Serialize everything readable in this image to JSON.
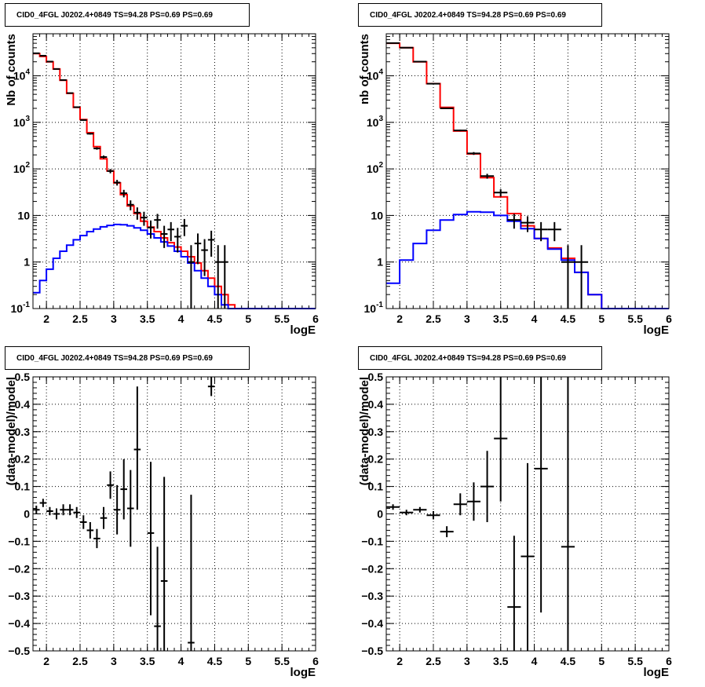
{
  "chart_data": [
    {
      "type": "step-histogram",
      "title": "CID0_4FGL J0202.4+0849 TS=94.28 PS=0.69 PS=0.69",
      "xlabel": "logE",
      "ylabel": "Nb of counts",
      "xlim": [
        1.8,
        6.0
      ],
      "ylim": [
        0.1,
        80000
      ],
      "yscale": "log",
      "grid": true,
      "xticks": [
        "2",
        "2.5",
        "3",
        "3.5",
        "4",
        "4.5",
        "5",
        "5.5",
        "6"
      ],
      "xtick_values": [
        2,
        2.5,
        3,
        3.5,
        4,
        4.5,
        5,
        5.5,
        6
      ],
      "yticks": [
        "10^-1",
        "1",
        "10",
        "10^2",
        "10^3",
        "10^4"
      ],
      "ytick_values": [
        0.1,
        1,
        10,
        100,
        1000,
        10000
      ],
      "bin_edges": [
        1.8,
        1.9,
        2.0,
        2.1,
        2.2,
        2.3,
        2.4,
        2.5,
        2.6,
        2.7,
        2.8,
        2.9,
        3.0,
        3.1,
        3.2,
        3.3,
        3.4,
        3.5,
        3.6,
        3.7,
        3.8,
        3.9,
        4.0,
        4.1,
        4.2,
        4.3,
        4.4,
        4.5,
        4.6,
        4.7,
        4.8,
        4.9,
        5.0,
        5.1,
        5.2,
        5.3,
        5.4,
        5.5,
        5.6,
        5.7,
        5.8,
        5.9,
        6.0
      ],
      "series": [
        {
          "name": "",
          "kind": "step",
          "color": "#ff0000",
          "values": [
            30000,
            26000,
            20000,
            14000,
            8000,
            4200,
            2100,
            1150,
            600,
            300,
            165,
            90,
            50,
            28,
            16,
            11,
            7.5,
            5.6,
            4.5,
            3.3,
            2.6,
            2.1,
            1.7,
            1.3,
            0.95,
            0.65,
            0.45,
            0.3,
            0.2,
            0.12,
            0.1,
            0.1,
            0.1,
            0.1,
            0.1,
            0.1,
            0.1,
            0.1,
            0.1,
            0.1,
            0.1,
            0.1
          ]
        },
        {
          "name": "",
          "kind": "step",
          "color": "#0000ff",
          "values": [
            0.22,
            0.4,
            0.7,
            1.2,
            1.7,
            2.3,
            3.0,
            3.7,
            4.5,
            5.1,
            5.7,
            6.1,
            6.4,
            6.3,
            6.0,
            5.4,
            4.8,
            4.0,
            3.3,
            2.7,
            2.2,
            1.7,
            1.3,
            0.95,
            0.65,
            0.45,
            0.3,
            0.2,
            0.12,
            0.1,
            0.1,
            0.1,
            0.1,
            0.1,
            0.1,
            0.1,
            0.1,
            0.1,
            0.1,
            0.1,
            0.1,
            0.1
          ]
        },
        {
          "name": "",
          "kind": "errorbar",
          "color": "#000000",
          "x": [
            1.85,
            1.95,
            2.05,
            2.15,
            2.25,
            2.35,
            2.45,
            2.55,
            2.65,
            2.75,
            2.85,
            2.95,
            3.05,
            3.15,
            3.25,
            3.35,
            3.45,
            3.55,
            3.65,
            3.75,
            3.85,
            3.95,
            4.05,
            4.15,
            4.25,
            4.35,
            4.45,
            4.55,
            4.65
          ],
          "y": [
            30500,
            27000,
            20200,
            14000,
            8100,
            4250,
            2120,
            1120,
            570,
            275,
            180,
            90,
            51,
            30,
            17,
            11.5,
            9,
            5.5,
            8,
            4,
            5,
            3.5,
            6,
            1,
            2.5,
            1.8,
            3,
            1,
            1
          ],
          "yerr_low": [
            175,
            165,
            142,
            118,
            90,
            65,
            46,
            33,
            24,
            16.5,
            13.4,
            9.5,
            7.1,
            5.5,
            4.1,
            3.4,
            3,
            2.3,
            2.8,
            2,
            2.2,
            1.9,
            2.4,
            0.9,
            1.6,
            1.3,
            1.7,
            0.9,
            0.9
          ],
          "yerr_high": [
            175,
            165,
            142,
            118,
            90,
            65,
            46,
            33,
            24,
            16.5,
            13.4,
            9.5,
            7.1,
            5.5,
            4.1,
            3.4,
            3,
            2.3,
            2.8,
            2,
            2.2,
            1.9,
            2.4,
            1.3,
            1.6,
            1.3,
            1.7,
            1.3,
            1.3
          ],
          "note": ""
        }
      ]
    },
    {
      "type": "step-histogram",
      "title": "CID0_4FGL J0202.4+0849 TS=94.28 PS=0.69 PS=0.69",
      "xlabel": "logE",
      "ylabel": "nb of counts",
      "xlim": [
        1.8,
        6.0
      ],
      "ylim": [
        0.1,
        80000
      ],
      "yscale": "log",
      "grid": true,
      "xticks": [
        "2",
        "2.5",
        "3",
        "3.5",
        "4",
        "4.5",
        "5",
        "5.5",
        "6"
      ],
      "xtick_values": [
        2,
        2.5,
        3,
        3.5,
        4,
        4.5,
        5,
        5.5,
        6
      ],
      "yticks": [
        "10^-1",
        "1",
        "10",
        "10^2",
        "10^3",
        "10^4"
      ],
      "ytick_values": [
        0.1,
        1,
        10,
        100,
        1000,
        10000
      ],
      "bin_edges": [
        1.8,
        2.0,
        2.2,
        2.4,
        2.6,
        2.8,
        3.0,
        3.2,
        3.4,
        3.6,
        3.8,
        4.0,
        4.2,
        4.4,
        4.6,
        4.8,
        5.0,
        5.2,
        5.4,
        5.6,
        5.8,
        6.0
      ],
      "series": [
        {
          "name": "",
          "kind": "step",
          "color": "#ff0000",
          "values": [
            50000,
            40000,
            20000,
            6800,
            2100,
            650,
            210,
            65,
            25,
            11,
            6,
            3.2,
            2,
            1.2,
            0.6,
            0.2,
            0.1,
            0.1,
            0.1,
            0.1,
            0.1
          ]
        },
        {
          "name": "",
          "kind": "step",
          "color": "#0000ff",
          "values": [
            0.35,
            1.1,
            2.5,
            4.8,
            8,
            10.5,
            12,
            11.8,
            10,
            7.5,
            5.2,
            3.2,
            1.9,
            1.1,
            0.6,
            0.2,
            0.1,
            0.1,
            0.1,
            0.1,
            0.1
          ]
        },
        {
          "name": "",
          "kind": "errorbar",
          "color": "#000000",
          "x": [
            1.9,
            2.1,
            2.3,
            2.5,
            2.7,
            2.9,
            3.1,
            3.3,
            3.5,
            3.7,
            3.9,
            4.1,
            4.3,
            4.5,
            4.7
          ],
          "y": [
            50500,
            40200,
            20200,
            6750,
            2000,
            670,
            215,
            70,
            31,
            8,
            7,
            5,
            5,
            1,
            1
          ],
          "yerr_low": [
            225,
            200,
            142,
            82,
            45,
            26,
            15,
            8.4,
            5.6,
            2.8,
            2.6,
            2.2,
            2.2,
            0.9,
            0.9
          ],
          "yerr_high": [
            225,
            200,
            142,
            82,
            45,
            26,
            15,
            8.4,
            5.6,
            2.8,
            2.6,
            2.2,
            2.2,
            1.3,
            1.3
          ],
          "note": ""
        }
      ]
    },
    {
      "type": "scatter",
      "title": "CID0_4FGL J0202.4+0849 TS=94.28 PS=0.69 PS=0.69",
      "xlabel": "logE",
      "ylabel": "(data-model)/model",
      "xlim": [
        1.8,
        6.0
      ],
      "ylim": [
        -0.5,
        0.5
      ],
      "yscale": "linear",
      "grid": true,
      "xticks": [
        "2",
        "2.5",
        "3",
        "3.5",
        "4",
        "4.5",
        "5",
        "5.5",
        "6"
      ],
      "xtick_values": [
        2,
        2.5,
        3,
        3.5,
        4,
        4.5,
        5,
        5.5,
        6
      ],
      "yticks": [
        "−0.5",
        "−0.4",
        "−0.3",
        "−0.2",
        "−0.1",
        "0",
        "0.1",
        "0.2",
        "0.3",
        "0.4",
        "0.5"
      ],
      "ytick_values": [
        -0.5,
        -0.4,
        -0.3,
        -0.2,
        -0.1,
        0,
        0.1,
        0.2,
        0.3,
        0.4,
        0.5
      ],
      "series": [
        {
          "name": "",
          "kind": "errorbar",
          "color": "#000000",
          "x": [
            1.85,
            1.95,
            2.05,
            2.15,
            2.25,
            2.35,
            2.45,
            2.55,
            2.65,
            2.75,
            2.85,
            2.95,
            3.05,
            3.15,
            3.25,
            3.35,
            3.55,
            3.65,
            3.75,
            4.15,
            4.45
          ],
          "y": [
            0.015,
            0.04,
            0.01,
            0.0,
            0.015,
            0.015,
            0.005,
            -0.03,
            -0.06,
            -0.09,
            -0.015,
            0.105,
            0.015,
            0.09,
            0.02,
            0.235,
            -0.07,
            -0.41,
            -0.245,
            -0.47,
            0.465
          ],
          "yerr_low": [
            0.015,
            0.015,
            0.015,
            0.02,
            0.02,
            0.02,
            0.02,
            0.025,
            0.03,
            0.035,
            0.04,
            0.05,
            0.09,
            0.11,
            0.14,
            0.22,
            0.3,
            0.09,
            0.255,
            0.03,
            0.035
          ],
          "yerr_high": [
            0.015,
            0.015,
            0.015,
            0.02,
            0.02,
            0.02,
            0.02,
            0.025,
            0.03,
            0.035,
            0.04,
            0.05,
            0.09,
            0.11,
            0.14,
            0.23,
            0.26,
            0.29,
            0.38,
            0.54,
            0.035
          ],
          "xerr": 0.05
        }
      ]
    },
    {
      "type": "scatter",
      "title": "CID0_4FGL J0202.4+0849 TS=94.28 PS=0.69 PS=0.69",
      "xlabel": "logE",
      "ylabel": "(data-model)/model",
      "xlim": [
        1.8,
        6.0
      ],
      "ylim": [
        -0.5,
        0.5
      ],
      "yscale": "linear",
      "grid": true,
      "xticks": [
        "2",
        "2.5",
        "3",
        "3.5",
        "4",
        "4.5",
        "5",
        "5.5",
        "6"
      ],
      "xtick_values": [
        2,
        2.5,
        3,
        3.5,
        4,
        4.5,
        5,
        5.5,
        6
      ],
      "yticks": [
        "−0.5",
        "−0.4",
        "−0.3",
        "−0.2",
        "−0.1",
        "0",
        "0.1",
        "0.2",
        "0.3",
        "0.4",
        "0.5"
      ],
      "ytick_values": [
        -0.5,
        -0.4,
        -0.3,
        -0.2,
        -0.1,
        0,
        0.1,
        0.2,
        0.3,
        0.4,
        0.5
      ],
      "series": [
        {
          "name": "",
          "kind": "errorbar",
          "color": "#000000",
          "x": [
            1.9,
            2.1,
            2.3,
            2.5,
            2.7,
            2.9,
            3.1,
            3.3,
            3.5,
            3.7,
            3.9,
            4.1,
            4.5
          ],
          "y": [
            0.025,
            0.005,
            0.015,
            -0.005,
            -0.065,
            0.035,
            0.045,
            0.1,
            0.275,
            -0.34,
            -0.155,
            0.165,
            -0.12
          ],
          "yerr_low": [
            0.01,
            0.01,
            0.01,
            0.015,
            0.02,
            0.04,
            0.07,
            0.13,
            0.23,
            0.16,
            0.345,
            0.525,
            0.38
          ],
          "yerr_high": [
            0.01,
            0.01,
            0.01,
            0.015,
            0.02,
            0.04,
            0.07,
            0.13,
            0.235,
            0.26,
            0.34,
            0.335,
            0.62
          ],
          "xerr": 0.1
        }
      ]
    }
  ]
}
